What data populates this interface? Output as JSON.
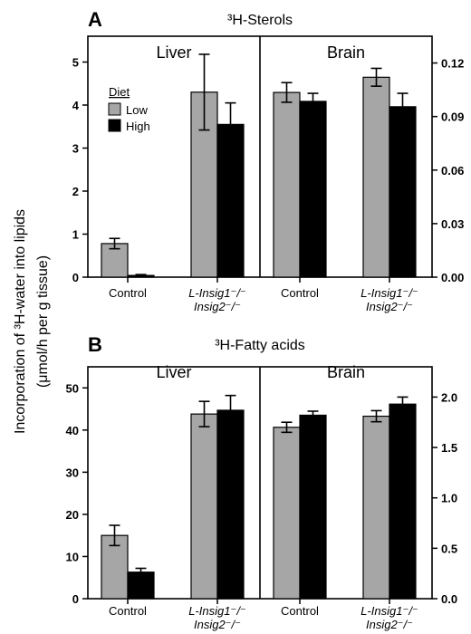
{
  "y_axis_label_line1": "Incorporation of ³H-water into lipids",
  "y_axis_label_line2": "(μmol/h per g tissue)",
  "chart_data": [
    {
      "type": "bar",
      "panel": "A",
      "title": "³H-Sterols",
      "legend": {
        "title": "Diet",
        "entries": [
          "Low",
          "High"
        ],
        "placement": "top-left of Liver section"
      },
      "colors": {
        "Low": "#a6a6a6",
        "High": "#000000"
      },
      "sections": [
        {
          "name": "Liver",
          "axis": "left",
          "ylim": [
            0,
            5.6
          ],
          "yticks": [
            "0",
            "1",
            "2",
            "3",
            "4",
            "5"
          ],
          "categories": [
            {
              "label": [
                "Control"
              ]
            },
            {
              "label": [
                "L-Insig1⁻/⁻",
                "Insig2⁻/⁻"
              ]
            }
          ],
          "series": [
            {
              "name": "Low",
              "values": [
                0.78,
                4.3
              ],
              "errors": [
                0.12,
                0.88
              ]
            },
            {
              "name": "High",
              "values": [
                0.04,
                3.55
              ],
              "errors": [
                0.02,
                0.5
              ]
            }
          ]
        },
        {
          "name": "Brain",
          "axis": "right",
          "ylim": [
            0,
            0.135
          ],
          "yticks": [
            "0.00",
            "0.03",
            "0.06",
            "0.09",
            "0.12"
          ],
          "categories": [
            {
              "label": [
                "Control"
              ]
            },
            {
              "label": [
                "L-Insig1⁻/⁻",
                "Insig2⁻/⁻"
              ]
            }
          ],
          "series": [
            {
              "name": "Low",
              "values": [
                0.1035,
                0.112
              ],
              "errors": [
                0.0055,
                0.005
              ]
            },
            {
              "name": "High",
              "values": [
                0.0985,
                0.0955
              ],
              "errors": [
                0.0045,
                0.0075
              ]
            }
          ]
        }
      ]
    },
    {
      "type": "bar",
      "panel": "B",
      "title": "³H-Fatty acids",
      "colors": {
        "Low": "#a6a6a6",
        "High": "#000000"
      },
      "sections": [
        {
          "name": "Liver",
          "axis": "left",
          "ylim": [
            0,
            55
          ],
          "yticks": [
            "0",
            "10",
            "20",
            "30",
            "40",
            "50"
          ],
          "categories": [
            {
              "label": [
                "Control"
              ]
            },
            {
              "label": [
                "L-Insig1⁻/⁻",
                "Insig2⁻/⁻"
              ]
            }
          ],
          "series": [
            {
              "name": "Low",
              "values": [
                15,
                43.8
              ],
              "errors": [
                2.4,
                3
              ]
            },
            {
              "name": "High",
              "values": [
                6.3,
                44.7
              ],
              "errors": [
                0.9,
                3.5
              ]
            }
          ]
        },
        {
          "name": "Brain",
          "axis": "right",
          "ylim": [
            0,
            2.3
          ],
          "yticks": [
            "0.0",
            "0.5",
            "1.0",
            "1.5",
            "2.0"
          ],
          "categories": [
            {
              "label": [
                "Control"
              ]
            },
            {
              "label": [
                "L-Insig1⁻/⁻",
                "Insig2⁻/⁻"
              ]
            }
          ],
          "series": [
            {
              "name": "Low",
              "values": [
                1.7,
                1.81
              ],
              "errors": [
                0.05,
                0.055
              ]
            },
            {
              "name": "High",
              "values": [
                1.82,
                1.93
              ],
              "errors": [
                0.04,
                0.07
              ]
            }
          ]
        }
      ]
    }
  ]
}
